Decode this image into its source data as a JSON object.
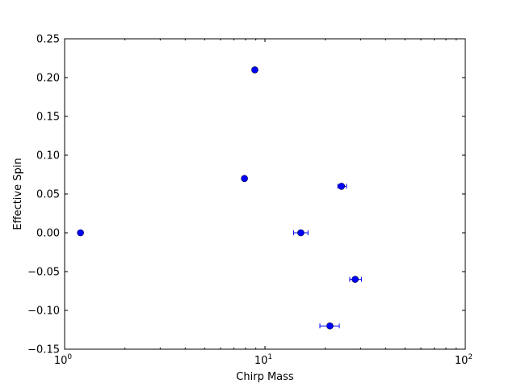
{
  "chart_data": {
    "type": "scatter",
    "title": "",
    "xlabel": "Chirp Mass",
    "ylabel": "Effective Spin",
    "xscale": "log",
    "xlim": [
      1,
      100
    ],
    "ylim": [
      -0.15,
      0.25
    ],
    "grid": false,
    "x_ticks": [
      {
        "value": 1,
        "base": "10",
        "exp": "0"
      },
      {
        "value": 10,
        "base": "10",
        "exp": "1"
      },
      {
        "value": 100,
        "base": "10",
        "exp": "2"
      }
    ],
    "y_ticks": [
      "−0.15",
      "−0.10",
      "−0.05",
      "0.00",
      "0.05",
      "0.10",
      "0.15",
      "0.20",
      "0.25"
    ],
    "y_tick_values": [
      -0.15,
      -0.1,
      -0.05,
      0.0,
      0.05,
      0.1,
      0.15,
      0.2,
      0.25
    ],
    "marker_color": "#0000ff",
    "points": [
      {
        "x": 1.2,
        "y": 0.0,
        "xerr": [
          1.2,
          1.2
        ]
      },
      {
        "x": 7.9,
        "y": 0.07,
        "xerr": [
          7.9,
          7.9
        ]
      },
      {
        "x": 8.9,
        "y": 0.21,
        "xerr": [
          8.9,
          8.9
        ]
      },
      {
        "x": 15.1,
        "y": 0.0,
        "xerr": [
          13.9,
          16.4
        ]
      },
      {
        "x": 21.1,
        "y": -0.12,
        "xerr": [
          18.8,
          23.5
        ]
      },
      {
        "x": 24.1,
        "y": 0.06,
        "xerr": [
          23.1,
          25.5
        ]
      },
      {
        "x": 28.2,
        "y": -0.06,
        "xerr": [
          26.5,
          30.3
        ]
      }
    ]
  }
}
